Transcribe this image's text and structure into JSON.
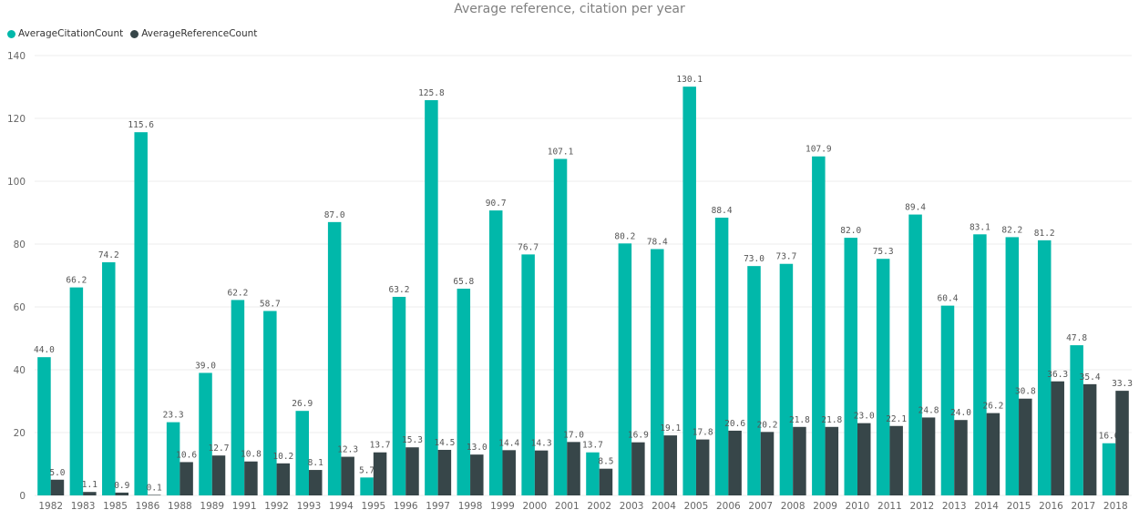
{
  "chart_data": {
    "type": "bar",
    "title": "Average reference, citation per year",
    "xlabel": "",
    "ylabel": "",
    "ylim": [
      0,
      140
    ],
    "yticks": [
      0,
      20,
      40,
      60,
      80,
      100,
      120,
      140
    ],
    "grid": true,
    "legend_position": "top-left",
    "categories": [
      "1982",
      "1983",
      "1985",
      "1986",
      "1988",
      "1989",
      "1991",
      "1992",
      "1993",
      "1994",
      "1995",
      "1996",
      "1997",
      "1998",
      "1999",
      "2000",
      "2001",
      "2002",
      "2003",
      "2004",
      "2005",
      "2006",
      "2007",
      "2008",
      "2009",
      "2010",
      "2011",
      "2012",
      "2013",
      "2014",
      "2015",
      "2016",
      "2017",
      "2018"
    ],
    "series": [
      {
        "name": "AverageCitationCount",
        "color": "#01B8AA",
        "values": [
          44.0,
          66.2,
          74.2,
          115.6,
          23.3,
          39.0,
          62.2,
          58.7,
          26.9,
          87.0,
          5.7,
          63.2,
          125.8,
          65.8,
          90.7,
          76.7,
          107.1,
          13.7,
          80.2,
          78.4,
          130.1,
          88.4,
          73.0,
          73.7,
          107.9,
          82.0,
          75.3,
          89.4,
          60.4,
          83.1,
          82.2,
          81.2,
          47.8,
          16.6
        ],
        "labels": [
          "44.0",
          "66.2",
          "74.2",
          "115.6",
          "23.3",
          "39.0",
          "62.2",
          "58.7",
          "26.9",
          "87.0",
          "5.7",
          "63.2",
          "125.8",
          "65.8",
          "90.7",
          "76.7",
          "107.1",
          "13.7",
          "80.2",
          "78.4",
          "130.1",
          "88.4",
          "73.0",
          "73.7",
          "107.9",
          "82.0",
          "75.3",
          "89.4",
          "60.4",
          "83.1",
          "82.2",
          "81.2",
          "47.8",
          "16.6"
        ]
      },
      {
        "name": "AverageReferenceCount",
        "color": "#374649",
        "values": [
          5.0,
          1.1,
          0.9,
          0.1,
          10.6,
          12.7,
          10.8,
          10.2,
          8.1,
          12.3,
          13.7,
          15.3,
          14.5,
          13.0,
          14.4,
          14.3,
          17.0,
          8.5,
          16.9,
          19.1,
          17.8,
          20.6,
          20.2,
          21.8,
          21.8,
          23.0,
          22.1,
          24.8,
          24.0,
          26.2,
          30.8,
          36.3,
          35.4,
          33.3
        ],
        "labels": [
          "5.0",
          "1.1",
          "0.9",
          "0.1",
          "10.6",
          "12.7",
          "10.8",
          "10.2",
          "8.1",
          "12.3",
          "13.7",
          "15.3",
          "14.5",
          "13.0",
          "14.4",
          "14.3",
          "17.0",
          "8.5",
          "16.9",
          "19.1",
          "17.8",
          "20.6",
          "20.2",
          "21.8",
          "21.8",
          "23.0",
          "22.1",
          "24.8",
          "24.0",
          "26.2",
          "30.8",
          "36.3",
          "35.4",
          "33.3"
        ]
      }
    ]
  }
}
